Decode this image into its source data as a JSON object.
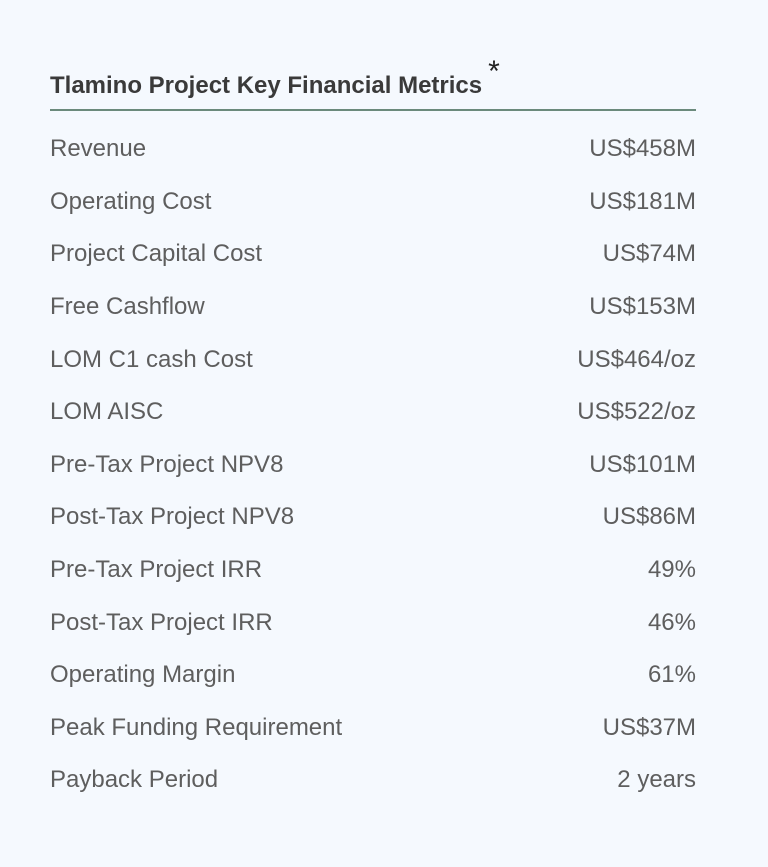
{
  "table": {
    "title": "Tlamino Project Key Financial Metrics",
    "title_mark": "*",
    "rows": [
      {
        "label": "Revenue",
        "value": "US$458M"
      },
      {
        "label": "Operating Cost",
        "value": "US$181M"
      },
      {
        "label": "Project Capital Cost",
        "value": "US$74M"
      },
      {
        "label": "Free Cashflow",
        "value": "US$153M"
      },
      {
        "label": "LOM C1 cash Cost",
        "value": "US$464/oz"
      },
      {
        "label": "LOM AISC",
        "value": "US$522/oz"
      },
      {
        "label": "Pre-Tax Project NPV8",
        "value": "US$101M"
      },
      {
        "label": "Post-Tax Project NPV8",
        "value": "US$86M"
      },
      {
        "label": "Pre-Tax Project IRR",
        "value": "49%"
      },
      {
        "label": "Post-Tax Project IRR",
        "value": "46%"
      },
      {
        "label": "Operating Margin",
        "value": "61%"
      },
      {
        "label": "Peak Funding Requirement",
        "value": "US$37M"
      },
      {
        "label": "Payback Period",
        "value": "2 years"
      }
    ]
  },
  "colors": {
    "background": "#f5f9fe",
    "rule": "#6b8a7c",
    "title": "#3a3a3a",
    "text": "#5e5e5e"
  }
}
